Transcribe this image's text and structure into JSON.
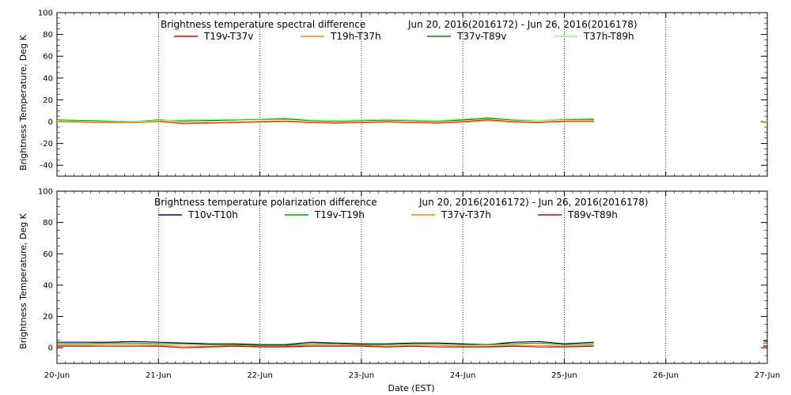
{
  "chart_data": [
    {
      "type": "line",
      "title": "Brightness temperature spectral difference",
      "date_range": "Jun 20, 2016(2016172) - Jun 26, 2016(2016178)",
      "ylabel": "Brightness Temperature, Deg K",
      "ylim": [
        -50,
        100
      ],
      "yticks": [
        -40,
        -20,
        0,
        20,
        40,
        60,
        80,
        100
      ],
      "xlim": [
        "2016-06-20",
        "2016-06-27"
      ],
      "grid": "vertical dotted lines at day boundaries",
      "legend_placement": "top",
      "series": [
        {
          "name": "T19v-T37v",
          "color": "#e00000",
          "values": [
            {
              "x": "2016-06-20T00:00",
              "y": 0.5
            },
            {
              "x": "2016-06-20T06:00",
              "y": 0.0
            },
            {
              "x": "2016-06-20T12:00",
              "y": -0.5
            },
            {
              "x": "2016-06-20T18:00",
              "y": -1
            },
            {
              "x": "2016-06-21T00:00",
              "y": 0.5
            },
            {
              "x": "2016-06-21T06:00",
              "y": -1.5
            },
            {
              "x": "2016-06-21T12:00",
              "y": -1
            },
            {
              "x": "2016-06-21T18:00",
              "y": -0.5
            },
            {
              "x": "2016-06-22T00:00",
              "y": 0
            },
            {
              "x": "2016-06-22T06:00",
              "y": 0.5
            },
            {
              "x": "2016-06-22T12:00",
              "y": -0.5
            },
            {
              "x": "2016-06-22T18:00",
              "y": -1
            },
            {
              "x": "2016-06-23T00:00",
              "y": -0.5
            },
            {
              "x": "2016-06-23T06:00",
              "y": 0
            },
            {
              "x": "2016-06-23T12:00",
              "y": -0.5
            },
            {
              "x": "2016-06-23T18:00",
              "y": -1
            },
            {
              "x": "2016-06-24T00:00",
              "y": 0
            },
            {
              "x": "2016-06-24T06:00",
              "y": 1.5
            },
            {
              "x": "2016-06-24T12:00",
              "y": 0
            },
            {
              "x": "2016-06-24T18:00",
              "y": -0.5
            },
            {
              "x": "2016-06-25T00:00",
              "y": 0.5
            },
            {
              "x": "2016-06-25T07:00",
              "y": 0.5
            },
            {
              "x": "2016-06-26T23:00",
              "y": -0.5
            },
            {
              "x": "2016-06-27T00:00",
              "y": 0
            }
          ]
        },
        {
          "name": "T19h-T37h",
          "color": "#ff8000",
          "values": [
            {
              "x": "2016-06-20T00:00",
              "y": 0
            },
            {
              "x": "2016-06-20T06:00",
              "y": -0.5
            },
            {
              "x": "2016-06-20T12:00",
              "y": -1
            },
            {
              "x": "2016-06-20T18:00",
              "y": -1
            },
            {
              "x": "2016-06-21T00:00",
              "y": 0
            },
            {
              "x": "2016-06-21T06:00",
              "y": -2
            },
            {
              "x": "2016-06-21T12:00",
              "y": -1.5
            },
            {
              "x": "2016-06-21T18:00",
              "y": -1
            },
            {
              "x": "2016-06-22T00:00",
              "y": -0.5
            },
            {
              "x": "2016-06-22T06:00",
              "y": 0
            },
            {
              "x": "2016-06-22T12:00",
              "y": -1
            },
            {
              "x": "2016-06-22T18:00",
              "y": -1.5
            },
            {
              "x": "2016-06-23T00:00",
              "y": -1
            },
            {
              "x": "2016-06-23T06:00",
              "y": -0.5
            },
            {
              "x": "2016-06-23T12:00",
              "y": -1
            },
            {
              "x": "2016-06-23T18:00",
              "y": -1.5
            },
            {
              "x": "2016-06-24T00:00",
              "y": -0.5
            },
            {
              "x": "2016-06-24T06:00",
              "y": 1
            },
            {
              "x": "2016-06-24T12:00",
              "y": -0.5
            },
            {
              "x": "2016-06-24T18:00",
              "y": -1
            },
            {
              "x": "2016-06-25T00:00",
              "y": 0
            },
            {
              "x": "2016-06-25T07:00",
              "y": 0
            },
            {
              "x": "2016-06-26T23:00",
              "y": -1
            },
            {
              "x": "2016-06-27T00:00",
              "y": -0.5
            }
          ]
        },
        {
          "name": "T37v-T89v",
          "color": "#008000",
          "values": [
            {
              "x": "2016-06-20T00:00",
              "y": 1.5
            },
            {
              "x": "2016-06-20T06:00",
              "y": 1
            },
            {
              "x": "2016-06-20T12:00",
              "y": 0.5
            },
            {
              "x": "2016-06-20T18:00",
              "y": 0
            },
            {
              "x": "2016-06-21T00:00",
              "y": 1.5
            },
            {
              "x": "2016-06-21T06:00",
              "y": 0.5
            },
            {
              "x": "2016-06-21T12:00",
              "y": 1
            },
            {
              "x": "2016-06-21T18:00",
              "y": 1.5
            },
            {
              "x": "2016-06-22T00:00",
              "y": 2
            },
            {
              "x": "2016-06-22T06:00",
              "y": 2.5
            },
            {
              "x": "2016-06-22T12:00",
              "y": 1
            },
            {
              "x": "2016-06-22T18:00",
              "y": 0.5
            },
            {
              "x": "2016-06-23T00:00",
              "y": 1
            },
            {
              "x": "2016-06-23T06:00",
              "y": 1.5
            },
            {
              "x": "2016-06-23T12:00",
              "y": 1
            },
            {
              "x": "2016-06-23T18:00",
              "y": 0.5
            },
            {
              "x": "2016-06-24T00:00",
              "y": 1.5
            },
            {
              "x": "2016-06-24T06:00",
              "y": 3
            },
            {
              "x": "2016-06-24T12:00",
              "y": 1.5
            },
            {
              "x": "2016-06-24T18:00",
              "y": 1
            },
            {
              "x": "2016-06-25T00:00",
              "y": 2
            },
            {
              "x": "2016-06-25T07:00",
              "y": 2
            },
            {
              "x": "2016-06-26T23:00",
              "y": 0
            },
            {
              "x": "2016-06-27T00:00",
              "y": 0.5
            }
          ]
        },
        {
          "name": "T37h-T89h",
          "color": "#80ff80",
          "values": [
            {
              "x": "2016-06-20T00:00",
              "y": 1
            },
            {
              "x": "2016-06-20T06:00",
              "y": 0.5
            },
            {
              "x": "2016-06-20T12:00",
              "y": 0
            },
            {
              "x": "2016-06-20T18:00",
              "y": 0
            },
            {
              "x": "2016-06-21T00:00",
              "y": 1
            },
            {
              "x": "2016-06-21T06:00",
              "y": 1.5
            },
            {
              "x": "2016-06-21T12:00",
              "y": 2
            },
            {
              "x": "2016-06-21T18:00",
              "y": 2
            },
            {
              "x": "2016-06-22T00:00",
              "y": 2.5
            },
            {
              "x": "2016-06-22T06:00",
              "y": 3.5
            },
            {
              "x": "2016-06-22T12:00",
              "y": 1.5
            },
            {
              "x": "2016-06-22T18:00",
              "y": 1
            },
            {
              "x": "2016-06-23T00:00",
              "y": 1.5
            },
            {
              "x": "2016-06-23T06:00",
              "y": 2
            },
            {
              "x": "2016-06-23T12:00",
              "y": 1.5
            },
            {
              "x": "2016-06-23T18:00",
              "y": 1
            },
            {
              "x": "2016-06-24T00:00",
              "y": 2.5
            },
            {
              "x": "2016-06-24T06:00",
              "y": 4
            },
            {
              "x": "2016-06-24T12:00",
              "y": 2
            },
            {
              "x": "2016-06-24T18:00",
              "y": 1
            },
            {
              "x": "2016-06-25T00:00",
              "y": 2.5
            },
            {
              "x": "2016-06-25T07:00",
              "y": 3
            },
            {
              "x": "2016-06-26T23:00",
              "y": 0
            },
            {
              "x": "2016-06-27T00:00",
              "y": 0.5
            }
          ]
        }
      ]
    },
    {
      "type": "line",
      "title": "Brightness temperature polarization difference",
      "date_range": "Jun 20, 2016(2016172) - Jun 26, 2016(2016178)",
      "ylabel": "Brightness Temperature, Deg K",
      "xlabel": "Date (EST)",
      "ylim": [
        -10,
        100
      ],
      "yticks": [
        0,
        20,
        40,
        60,
        80,
        100
      ],
      "xlim": [
        "2016-06-20",
        "2016-06-27"
      ],
      "xticks": [
        "20-Jun",
        "21-Jun",
        "22-Jun",
        "23-Jun",
        "24-Jun",
        "25-Jun",
        "26-Jun",
        "27-Jun"
      ],
      "grid": "vertical dotted lines at day boundaries",
      "legend_placement": "top",
      "series": [
        {
          "name": "T10v-T10h",
          "color": "#000080",
          "values": [
            {
              "x": "2016-06-20T00:00",
              "y": 3.5
            },
            {
              "x": "2016-06-20T06:00",
              "y": 3.5
            },
            {
              "x": "2016-06-20T12:00",
              "y": 3.5
            },
            {
              "x": "2016-06-20T18:00",
              "y": 4
            },
            {
              "x": "2016-06-21T00:00",
              "y": 3.5
            },
            {
              "x": "2016-06-21T06:00",
              "y": 3
            },
            {
              "x": "2016-06-21T12:00",
              "y": 2.5
            },
            {
              "x": "2016-06-21T18:00",
              "y": 2.5
            },
            {
              "x": "2016-06-22T00:00",
              "y": 2
            },
            {
              "x": "2016-06-22T06:00",
              "y": 2
            },
            {
              "x": "2016-06-22T12:00",
              "y": 3.5
            },
            {
              "x": "2016-06-22T18:00",
              "y": 3
            },
            {
              "x": "2016-06-23T00:00",
              "y": 2.5
            },
            {
              "x": "2016-06-23T06:00",
              "y": 2.5
            },
            {
              "x": "2016-06-23T12:00",
              "y": 3
            },
            {
              "x": "2016-06-23T18:00",
              "y": 3
            },
            {
              "x": "2016-06-24T00:00",
              "y": 2.5
            },
            {
              "x": "2016-06-24T06:00",
              "y": 2
            },
            {
              "x": "2016-06-24T12:00",
              "y": 3.5
            },
            {
              "x": "2016-06-24T18:00",
              "y": 4
            },
            {
              "x": "2016-06-25T00:00",
              "y": 2.5
            },
            {
              "x": "2016-06-25T07:00",
              "y": 3.5
            },
            {
              "x": "2016-06-26T23:00",
              "y": 4.5
            },
            {
              "x": "2016-06-27T00:00",
              "y": 4
            }
          ]
        },
        {
          "name": "T19v-T19h",
          "color": "#00a000",
          "values": [
            {
              "x": "2016-06-20T00:00",
              "y": 2.5
            },
            {
              "x": "2016-06-20T06:00",
              "y": 2.5
            },
            {
              "x": "2016-06-20T12:00",
              "y": 3
            },
            {
              "x": "2016-06-20T18:00",
              "y": 3
            },
            {
              "x": "2016-06-21T00:00",
              "y": 2.5
            },
            {
              "x": "2016-06-21T06:00",
              "y": 2.5
            },
            {
              "x": "2016-06-21T12:00",
              "y": 2
            },
            {
              "x": "2016-06-21T18:00",
              "y": 2
            },
            {
              "x": "2016-06-22T00:00",
              "y": 1.5
            },
            {
              "x": "2016-06-22T06:00",
              "y": 1.5
            },
            {
              "x": "2016-06-22T12:00",
              "y": 2.5
            },
            {
              "x": "2016-06-22T18:00",
              "y": 2.5
            },
            {
              "x": "2016-06-23T00:00",
              "y": 2
            },
            {
              "x": "2016-06-23T06:00",
              "y": 2
            },
            {
              "x": "2016-06-23T12:00",
              "y": 2.5
            },
            {
              "x": "2016-06-23T18:00",
              "y": 2.5
            },
            {
              "x": "2016-06-24T00:00",
              "y": 2
            },
            {
              "x": "2016-06-24T06:00",
              "y": 2
            },
            {
              "x": "2016-06-24T12:00",
              "y": 2.5
            },
            {
              "x": "2016-06-24T18:00",
              "y": 3
            },
            {
              "x": "2016-06-25T00:00",
              "y": 2
            },
            {
              "x": "2016-06-25T07:00",
              "y": 2.5
            },
            {
              "x": "2016-06-26T23:00",
              "y": 3
            },
            {
              "x": "2016-06-27T00:00",
              "y": 3
            }
          ]
        },
        {
          "name": "T37v-T37h",
          "color": "#ff8000",
          "values": [
            {
              "x": "2016-06-20T00:00",
              "y": 1.5
            },
            {
              "x": "2016-06-20T06:00",
              "y": 1.5
            },
            {
              "x": "2016-06-20T12:00",
              "y": 2
            },
            {
              "x": "2016-06-20T18:00",
              "y": 2
            },
            {
              "x": "2016-06-21T00:00",
              "y": 1.5
            },
            {
              "x": "2016-06-21T06:00",
              "y": 1
            },
            {
              "x": "2016-06-21T12:00",
              "y": 1
            },
            {
              "x": "2016-06-21T18:00",
              "y": 1.5
            },
            {
              "x": "2016-06-22T00:00",
              "y": 1
            },
            {
              "x": "2016-06-22T06:00",
              "y": 1
            },
            {
              "x": "2016-06-22T12:00",
              "y": 1.5
            },
            {
              "x": "2016-06-22T18:00",
              "y": 1.5
            },
            {
              "x": "2016-06-23T00:00",
              "y": 1.5
            },
            {
              "x": "2016-06-23T06:00",
              "y": 1
            },
            {
              "x": "2016-06-23T12:00",
              "y": 1.5
            },
            {
              "x": "2016-06-23T18:00",
              "y": 1.5
            },
            {
              "x": "2016-06-24T00:00",
              "y": 1
            },
            {
              "x": "2016-06-24T06:00",
              "y": 1
            },
            {
              "x": "2016-06-24T12:00",
              "y": 1.5
            },
            {
              "x": "2016-06-24T18:00",
              "y": 1.5
            },
            {
              "x": "2016-06-25T00:00",
              "y": 1
            },
            {
              "x": "2016-06-25T07:00",
              "y": 1.5
            },
            {
              "x": "2016-06-26T23:00",
              "y": 1.5
            },
            {
              "x": "2016-06-27T00:00",
              "y": 1.5
            }
          ]
        },
        {
          "name": "T89v-T89h",
          "color": "#c00000",
          "values": [
            {
              "x": "2016-06-20T00:00",
              "y": 1
            },
            {
              "x": "2016-06-20T06:00",
              "y": 1
            },
            {
              "x": "2016-06-20T12:00",
              "y": 1
            },
            {
              "x": "2016-06-20T18:00",
              "y": 1
            },
            {
              "x": "2016-06-21T00:00",
              "y": 1
            },
            {
              "x": "2016-06-21T06:00",
              "y": 0
            },
            {
              "x": "2016-06-21T12:00",
              "y": 0.5
            },
            {
              "x": "2016-06-21T18:00",
              "y": 1
            },
            {
              "x": "2016-06-22T00:00",
              "y": 0.5
            },
            {
              "x": "2016-06-22T06:00",
              "y": 0.5
            },
            {
              "x": "2016-06-22T12:00",
              "y": 1
            },
            {
              "x": "2016-06-22T18:00",
              "y": 1
            },
            {
              "x": "2016-06-23T00:00",
              "y": 1
            },
            {
              "x": "2016-06-23T06:00",
              "y": 0.5
            },
            {
              "x": "2016-06-23T12:00",
              "y": 1
            },
            {
              "x": "2016-06-23T18:00",
              "y": 0.5
            },
            {
              "x": "2016-06-24T00:00",
              "y": 0.5
            },
            {
              "x": "2016-06-24T06:00",
              "y": 0.5
            },
            {
              "x": "2016-06-24T12:00",
              "y": 1
            },
            {
              "x": "2016-06-24T18:00",
              "y": 0.5
            },
            {
              "x": "2016-06-25T00:00",
              "y": 0.5
            },
            {
              "x": "2016-06-25T07:00",
              "y": 1
            },
            {
              "x": "2016-06-26T23:00",
              "y": 1
            },
            {
              "x": "2016-06-27T00:00",
              "y": 1
            }
          ]
        }
      ]
    }
  ]
}
